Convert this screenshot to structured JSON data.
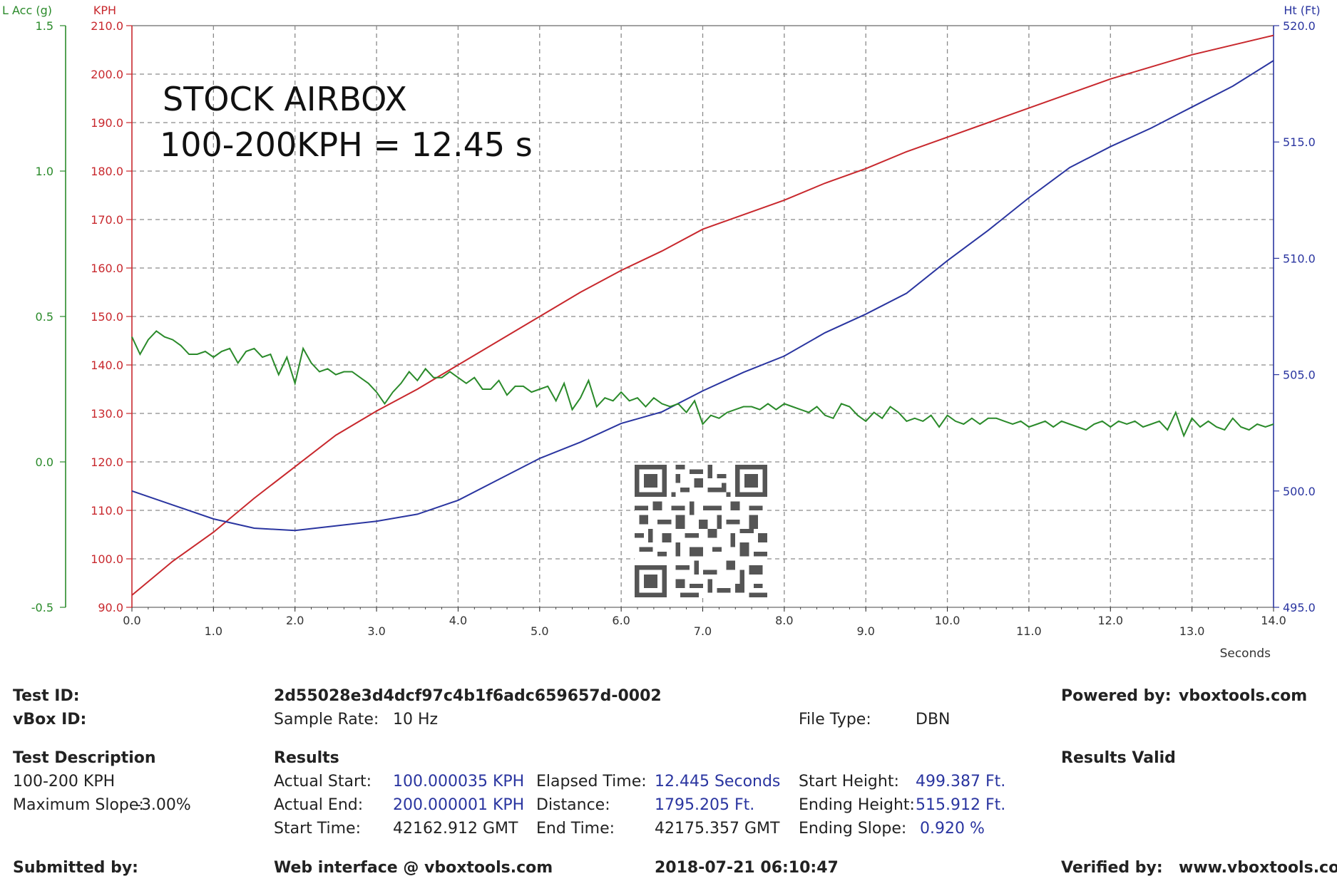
{
  "annotation": {
    "line1": "STOCK AIRBOX",
    "line2": "100-200KPH = 12.45 s"
  },
  "colors": {
    "speed": "#c8282d",
    "height": "#2a35a0",
    "lat_acc": "#2a8a2a",
    "grid": "#8a8a8a"
  },
  "chart_data": {
    "type": "line",
    "xlabel": "Seconds",
    "xlim": [
      0,
      14
    ],
    "x_ticks": [
      "0.0",
      "1.0",
      "2.0",
      "3.0",
      "4.0",
      "5.0",
      "6.0",
      "7.0",
      "8.0",
      "9.0",
      "10.0",
      "11.0",
      "12.0",
      "13.0",
      "14.0"
    ],
    "grid": true,
    "axes": {
      "lat_acc": {
        "label": "L Acc (g)",
        "range": [
          -0.5,
          1.5
        ],
        "ticks": [
          "1.5",
          "1.0",
          "0.5",
          "0.0",
          "-0.5"
        ],
        "side": "left"
      },
      "speed": {
        "label": "KPH",
        "range": [
          90,
          210
        ],
        "ticks": [
          "210.0",
          "200.0",
          "190.0",
          "180.0",
          "170.0",
          "160.0",
          "150.0",
          "140.0",
          "130.0",
          "120.0",
          "110.0",
          "100.0",
          "90.0"
        ],
        "side": "left"
      },
      "height": {
        "label": "Ht (Ft)",
        "range": [
          495,
          520
        ],
        "ticks": [
          "520.0",
          "515.0",
          "510.0",
          "505.0",
          "500.0",
          "495.0"
        ],
        "side": "right"
      }
    },
    "series": [
      {
        "axis": "speed",
        "x": [
          0,
          0.5,
          1,
          1.5,
          2,
          2.5,
          3,
          3.5,
          4,
          4.5,
          5,
          5.5,
          6,
          6.5,
          7,
          7.5,
          8,
          8.5,
          9,
          9.5,
          10,
          10.5,
          11,
          11.5,
          12,
          12.5,
          13,
          13.5,
          14
        ],
        "y": [
          92.5,
          99.5,
          105.5,
          112.5,
          119,
          125.5,
          130.5,
          135,
          140,
          145,
          150,
          155,
          159.5,
          163.5,
          168,
          171,
          174,
          177.5,
          180.5,
          184,
          187,
          190,
          193,
          196,
          199,
          201.5,
          204,
          206,
          208
        ]
      },
      {
        "axis": "height",
        "x": [
          0,
          0.5,
          1,
          1.5,
          2,
          2.5,
          3,
          3.5,
          4,
          4.5,
          5,
          5.5,
          6,
          6.5,
          7,
          7.5,
          8,
          8.5,
          9,
          9.5,
          10,
          10.5,
          11,
          11.5,
          12,
          12.5,
          13,
          13.5,
          14
        ],
        "y": [
          500,
          499.4,
          498.8,
          498.4,
          498.3,
          498.5,
          498.7,
          499,
          499.6,
          500.5,
          501.4,
          502.1,
          502.9,
          503.4,
          504.3,
          505.1,
          505.8,
          506.8,
          507.6,
          508.5,
          509.9,
          511.2,
          512.6,
          513.9,
          514.8,
          515.6,
          516.5,
          517.4,
          518.5
        ]
      },
      {
        "axis": "lat_acc",
        "x": [
          0,
          0.1,
          0.2,
          0.3,
          0.4,
          0.5,
          0.6,
          0.7,
          0.8,
          0.9,
          1.0,
          1.1,
          1.2,
          1.3,
          1.4,
          1.5,
          1.6,
          1.7,
          1.8,
          1.9,
          2.0,
          2.1,
          2.2,
          2.3,
          2.4,
          2.5,
          2.6,
          2.7,
          2.8,
          2.9,
          3.0,
          3.1,
          3.2,
          3.3,
          3.4,
          3.5,
          3.6,
          3.7,
          3.8,
          3.9,
          4.0,
          4.1,
          4.2,
          4.3,
          4.4,
          4.5,
          4.6,
          4.7,
          4.8,
          4.9,
          5.0,
          5.1,
          5.2,
          5.3,
          5.4,
          5.5,
          5.6,
          5.7,
          5.8,
          5.9,
          6.0,
          6.1,
          6.2,
          6.3,
          6.4,
          6.5,
          6.6,
          6.7,
          6.8,
          6.9,
          7.0,
          7.1,
          7.2,
          7.3,
          7.4,
          7.5,
          7.6,
          7.7,
          7.8,
          7.9,
          8.0,
          8.1,
          8.2,
          8.3,
          8.4,
          8.5,
          8.6,
          8.7,
          8.8,
          8.9,
          9.0,
          9.1,
          9.2,
          9.3,
          9.4,
          9.5,
          9.6,
          9.7,
          9.8,
          9.9,
          10.0,
          10.1,
          10.2,
          10.3,
          10.4,
          10.5,
          10.6,
          10.7,
          10.8,
          10.9,
          11.0,
          11.1,
          11.2,
          11.3,
          11.4,
          11.5,
          11.6,
          11.7,
          11.8,
          11.9,
          12.0,
          12.1,
          12.2,
          12.3,
          12.4,
          12.5,
          12.6,
          12.7,
          12.8,
          12.9,
          13.0,
          13.1,
          13.2,
          13.3,
          13.4,
          13.5,
          13.6,
          13.7,
          13.8,
          13.9,
          14.0
        ],
        "y": [
          0.43,
          0.37,
          0.42,
          0.45,
          0.43,
          0.42,
          0.4,
          0.37,
          0.37,
          0.38,
          0.36,
          0.38,
          0.39,
          0.34,
          0.38,
          0.39,
          0.36,
          0.37,
          0.3,
          0.36,
          0.27,
          0.39,
          0.34,
          0.31,
          0.32,
          0.3,
          0.31,
          0.31,
          0.29,
          0.27,
          0.24,
          0.2,
          0.24,
          0.27,
          0.31,
          0.28,
          0.32,
          0.29,
          0.29,
          0.31,
          0.29,
          0.27,
          0.29,
          0.25,
          0.25,
          0.28,
          0.23,
          0.26,
          0.26,
          0.24,
          0.25,
          0.26,
          0.21,
          0.27,
          0.18,
          0.22,
          0.28,
          0.19,
          0.22,
          0.21,
          0.24,
          0.21,
          0.22,
          0.19,
          0.22,
          0.2,
          0.19,
          0.2,
          0.17,
          0.21,
          0.13,
          0.16,
          0.15,
          0.17,
          0.18,
          0.19,
          0.19,
          0.18,
          0.2,
          0.18,
          0.2,
          0.19,
          0.18,
          0.17,
          0.19,
          0.16,
          0.15,
          0.2,
          0.19,
          0.16,
          0.14,
          0.17,
          0.15,
          0.19,
          0.17,
          0.14,
          0.15,
          0.14,
          0.16,
          0.12,
          0.16,
          0.14,
          0.13,
          0.15,
          0.13,
          0.15,
          0.15,
          0.14,
          0.13,
          0.14,
          0.12,
          0.13,
          0.14,
          0.12,
          0.14,
          0.13,
          0.12,
          0.11,
          0.13,
          0.14,
          0.12,
          0.14,
          0.13,
          0.14,
          0.12,
          0.13,
          0.14,
          0.11,
          0.17,
          0.09,
          0.15,
          0.12,
          0.14,
          0.12,
          0.11,
          0.15,
          0.12,
          0.11,
          0.13,
          0.12,
          0.13
        ]
      }
    ]
  },
  "report": {
    "test_id_label": "Test ID:",
    "test_id_value": "2d55028e3d4dcf97c4b1f6adc659657d-0002",
    "powered_by_label": "Powered by:",
    "powered_by_value": "vboxtools.com",
    "vbox_id_label": "vBox ID:",
    "sample_rate_label": "Sample Rate:",
    "sample_rate_value": "10 Hz",
    "file_type_label": "File Type:",
    "file_type_value": "DBN",
    "test_description_label": "Test Description",
    "results_label": "Results",
    "results_valid_label": "Results Valid",
    "description_value": "100-200 KPH",
    "max_slope_label": "Maximum Slope:",
    "max_slope_value": "-3.00%",
    "actual_start_label": "Actual Start:",
    "actual_start_value": "100.000035 KPH",
    "elapsed_time_label": "Elapsed Time:",
    "elapsed_time_value": "12.445 Seconds",
    "start_height_label": "Start Height:",
    "start_height_value": "499.387 Ft.",
    "actual_end_label": "Actual End:",
    "actual_end_value": "200.000001 KPH",
    "distance_label": "Distance:",
    "distance_value": "1795.205 Ft.",
    "ending_height_label": "Ending Height:",
    "ending_height_value": "515.912 Ft.",
    "start_time_label": "Start Time:",
    "start_time_value": "42162.912 GMT",
    "end_time_label": "End Time:",
    "end_time_value": "42175.357 GMT",
    "ending_slope_label": "Ending Slope:",
    "ending_slope_value": "0.920 %",
    "submitted_by_label": "Submitted by:",
    "web_interface": "Web interface @ vboxtools.com",
    "timestamp": "2018-07-21 06:10:47",
    "verified_by_label": "Verified by:",
    "verified_by_value": "www.vboxtools.com"
  }
}
